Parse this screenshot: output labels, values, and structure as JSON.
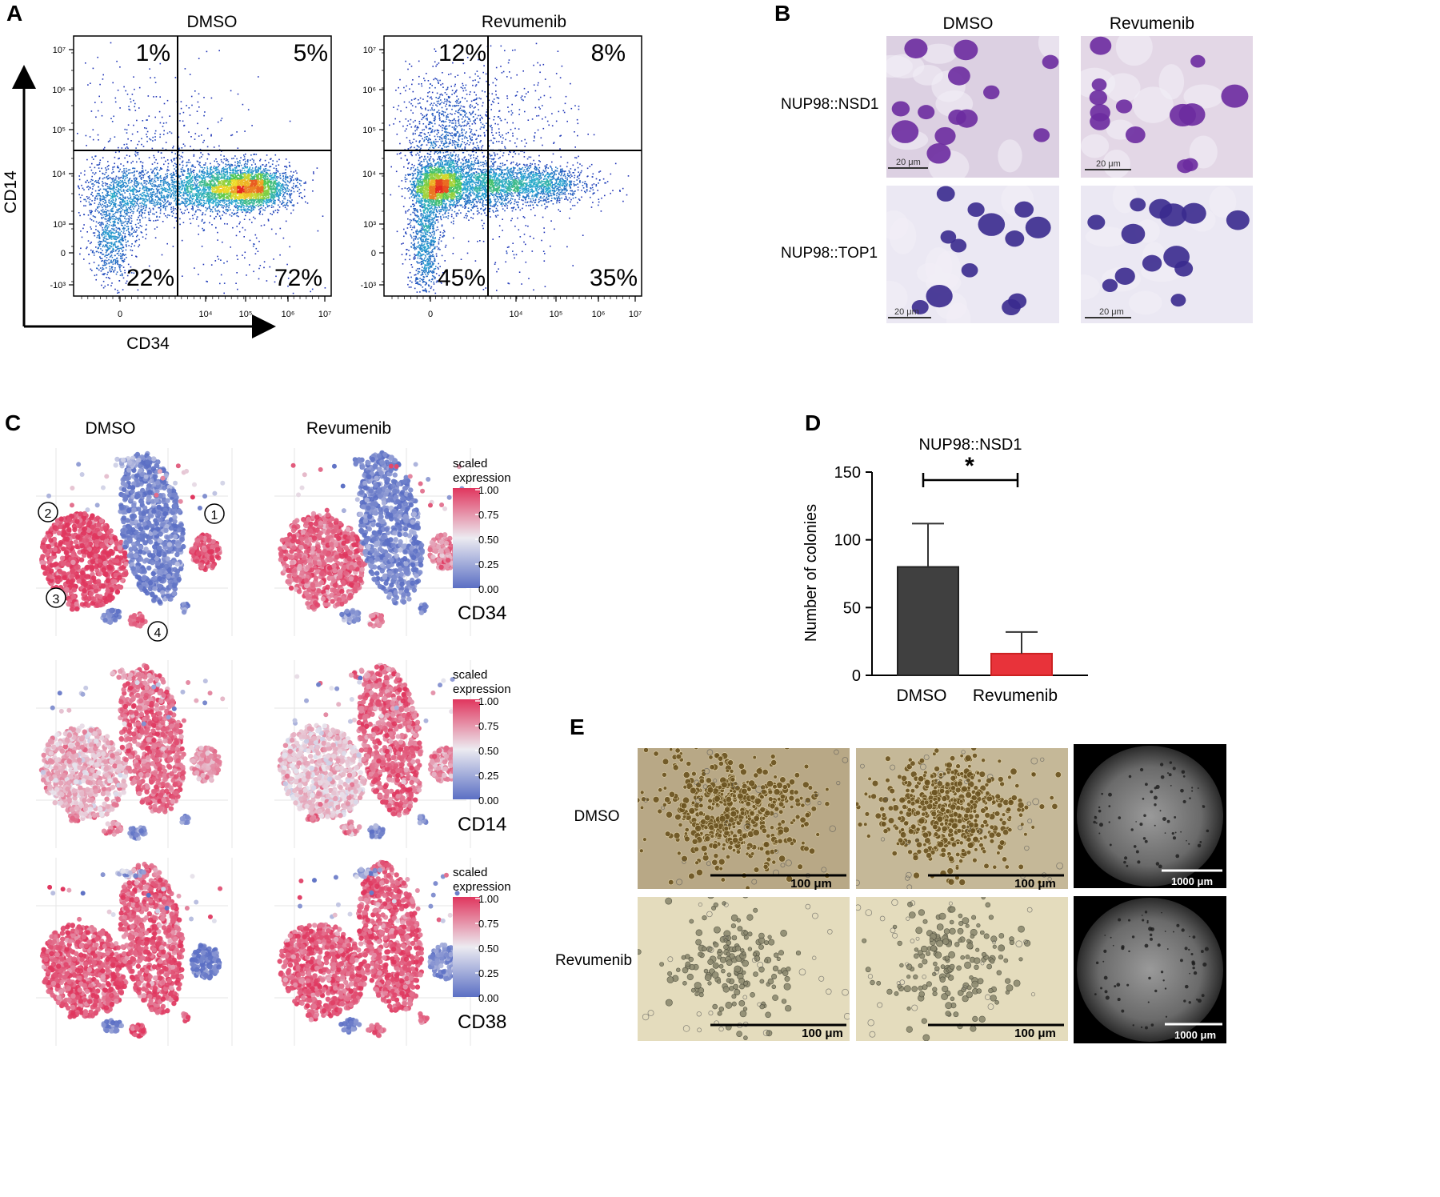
{
  "panels": {
    "A": {
      "letter": "A",
      "plots": [
        {
          "title": "DMSO",
          "quadrants": {
            "ul": "1%",
            "ur": "5%",
            "ll": "22%",
            "lr": "72%"
          }
        },
        {
          "title": "Revumenib",
          "quadrants": {
            "ul": "12%",
            "ur": "8%",
            "ll": "45%",
            "lr": "35%"
          }
        }
      ],
      "x_axis_label": "CD34",
      "y_axis_label": "CD14",
      "y_ticks": [
        "10⁷",
        "10⁶",
        "10⁵",
        "10⁴",
        "10³",
        "0",
        "-10³"
      ],
      "x_ticks": [
        "0",
        "10⁴",
        "10⁵",
        "10⁶",
        "10⁷"
      ]
    },
    "B": {
      "letter": "B",
      "columns": [
        "DMSO",
        "Revumenib"
      ],
      "rows": [
        "NUP98::NSD1",
        "NUP98::TOP1"
      ],
      "scale_bar": "20 μm"
    },
    "C": {
      "letter": "C",
      "columns": [
        "DMSO",
        "Revumenib"
      ],
      "legend_title_line1": "scaled",
      "legend_title_line2": "expression",
      "legend_ticks": [
        "1.00",
        "0.75",
        "0.50",
        "0.25",
        "0.00"
      ],
      "markers": [
        "CD34",
        "CD14",
        "CD38"
      ],
      "cluster_labels": [
        "①",
        "②",
        "③",
        "④"
      ],
      "colors": {
        "low": "#5b6fc4",
        "mid": "#e8e6ee",
        "high": "#e0365e"
      }
    },
    "D": {
      "letter": "D",
      "significance": "*"
    },
    "E": {
      "letter": "E",
      "rows": [
        "DMSO",
        "Revumenib"
      ],
      "scale_small": "100 μm",
      "scale_large": "1000 μm"
    }
  },
  "chart_data": [
    {
      "type": "bar",
      "title": "NUP98::NSD1",
      "categories": [
        "DMSO",
        "Revumenib"
      ],
      "values": [
        80,
        16
      ],
      "error_upper": [
        112,
        32
      ],
      "ylabel": "Number of colonies",
      "xlabel": "",
      "ylim": [
        0,
        150
      ],
      "yticks": [
        0,
        50,
        100,
        150
      ],
      "colors": [
        "#404040",
        "#e8333a"
      ]
    }
  ]
}
